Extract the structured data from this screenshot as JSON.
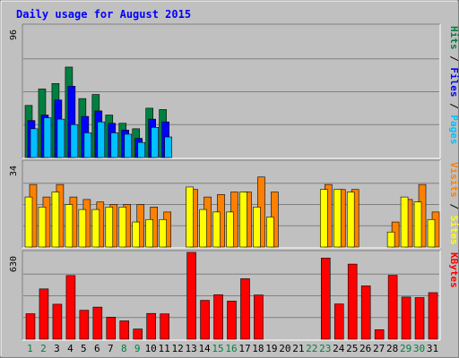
{
  "chart_data": {
    "type": "bar",
    "title": "Daily usage for August 2015",
    "categories": [
      "1",
      "2",
      "3",
      "4",
      "5",
      "6",
      "7",
      "8",
      "9",
      "10",
      "11",
      "12",
      "13",
      "14",
      "15",
      "16",
      "17",
      "18",
      "19",
      "20",
      "21",
      "22",
      "23",
      "24",
      "25",
      "26",
      "27",
      "28",
      "29",
      "30",
      "31"
    ],
    "weekend_days": [
      "1",
      "2",
      "8",
      "9",
      "15",
      "16",
      "22",
      "23",
      "29",
      "30"
    ],
    "panels": [
      {
        "id": "hits",
        "ymax_label": "96",
        "ymax": 96,
        "ylabel_parts": [
          "Pages",
          "Files",
          "Hits"
        ],
        "series": [
          {
            "name": "Hits",
            "color": "#008040",
            "values": [
              38,
              50,
              54,
              66,
              43,
              46,
              31,
              25,
              21,
              36,
              35,
              0,
              0,
              0,
              0,
              0,
              0,
              0,
              0,
              0,
              0,
              0,
              0,
              0,
              0,
              0,
              0,
              0,
              0,
              0,
              0
            ]
          },
          {
            "name": "Files",
            "color": "#0000ff",
            "values": [
              27,
              31,
              42,
              52,
              30,
              34,
              25,
              20,
              14,
              28,
              26,
              0,
              0,
              0,
              0,
              0,
              0,
              0,
              0,
              0,
              0,
              0,
              0,
              0,
              0,
              0,
              0,
              0,
              0,
              0,
              0
            ]
          },
          {
            "name": "Pages",
            "color": "#00c0ff",
            "values": [
              21,
              29,
              28,
              24,
              18,
              26,
              18,
              17,
              11,
              22,
              15,
              0,
              0,
              0,
              0,
              0,
              0,
              0,
              0,
              0,
              0,
              0,
              0,
              0,
              0,
              0,
              0,
              0,
              0,
              0,
              0
            ]
          }
        ]
      },
      {
        "id": "visits",
        "ymax_label": "34",
        "ymax": 34,
        "ylabel_parts": [
          "Sites",
          "Visits"
        ],
        "series": [
          {
            "name": "Visits",
            "color": "#ff8000",
            "values": [
              25,
              20,
              25,
              20,
              19,
              18,
              17,
              17,
              17,
              16,
              14,
              0,
              23,
              20,
              21,
              22,
              22,
              28,
              22,
              0,
              0,
              0,
              25,
              23,
              23,
              0,
              0,
              10,
              19,
              25,
              14
            ]
          },
          {
            "name": "Sites",
            "color": "#ffff00",
            "values": [
              20,
              16,
              22,
              17,
              15,
              15,
              16,
              16,
              10,
              11,
              11,
              0,
              24,
              15,
              14,
              14,
              22,
              16,
              12,
              0,
              0,
              0,
              23,
              23,
              22,
              0,
              0,
              6,
              20,
              18,
              11
            ]
          }
        ]
      },
      {
        "id": "kbytes",
        "ymax_label": "630",
        "ymax": 630,
        "ylabel_parts": [
          "KBytes"
        ],
        "series": [
          {
            "name": "KBytes",
            "color": "#ff0000",
            "values": [
              185,
              365,
              254,
              462,
              210,
              233,
              160,
              133,
              74,
              187,
              184,
              0,
              630,
              282,
              323,
              277,
              439,
              321,
              0,
              0,
              0,
              0,
              589,
              256,
              545,
              387,
              69,
              464,
              306,
              302,
              338
            ]
          }
        ]
      }
    ]
  }
}
